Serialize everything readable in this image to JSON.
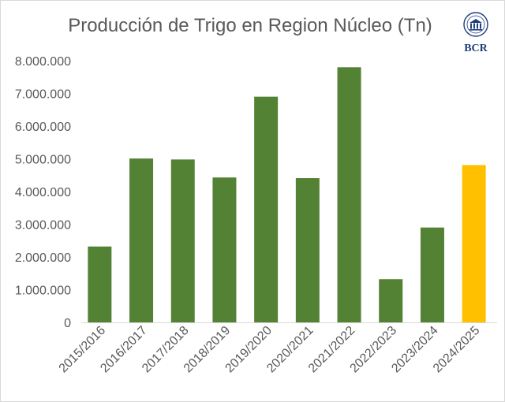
{
  "chart_data": {
    "type": "bar",
    "title": "Producción de Trigo en Region Núcleo (Tn)",
    "xlabel": "",
    "ylabel": "",
    "ylim": [
      0,
      8000000
    ],
    "yticks": [
      0,
      1000000,
      2000000,
      3000000,
      4000000,
      5000000,
      6000000,
      7000000,
      8000000
    ],
    "ytick_labels": [
      "0",
      "1.000.000",
      "2.000.000",
      "3.000.000",
      "4.000.000",
      "5.000.000",
      "6.000.000",
      "7.000.000",
      "8.000.000"
    ],
    "categories": [
      "2015/2016",
      "2016/2017",
      "2017/2018",
      "2018/2019",
      "2019/2020",
      "2020/2021",
      "2021/2022",
      "2022/2023",
      "2023/2024",
      "2024/2025"
    ],
    "values": [
      2320000,
      5010000,
      4980000,
      4430000,
      6900000,
      4410000,
      7800000,
      1320000,
      2900000,
      4810000
    ],
    "bar_colors": [
      "#548235",
      "#548235",
      "#548235",
      "#548235",
      "#548235",
      "#548235",
      "#548235",
      "#548235",
      "#548235",
      "#ffc000"
    ],
    "grid": false,
    "legend": "none"
  },
  "logo": {
    "text": "BCR",
    "icon": "bolsa-de-comercio-seal-icon",
    "color": "#1f3d7a"
  }
}
